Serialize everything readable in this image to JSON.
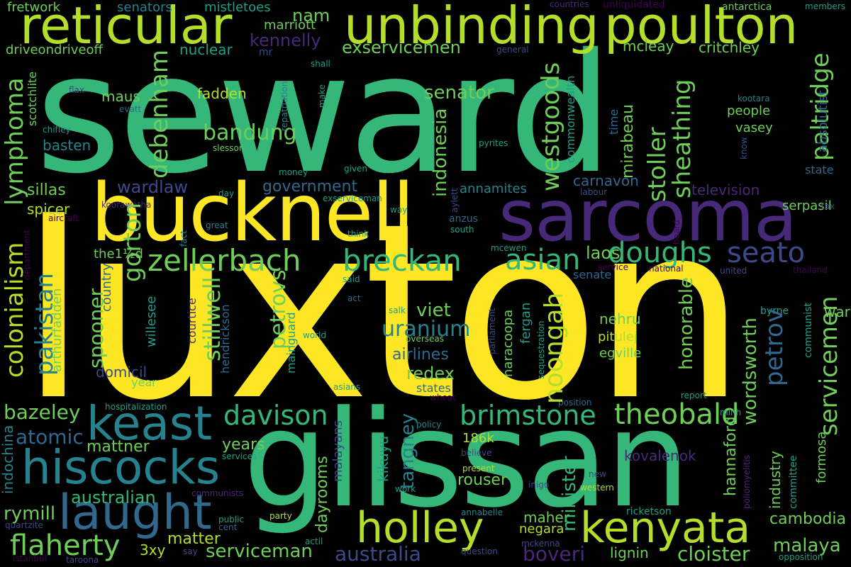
{
  "words": {
    "seward": "seward",
    "luxton": "luxton",
    "glissan": "glissan",
    "bucknell": "bucknell",
    "sarcoma": "sarcoma",
    "reticular": "reticular",
    "unbinding": "unbinding",
    "poulton": "poulton",
    "keast": "keast",
    "hiscocks": "hiscocks",
    "laught": "laught",
    "holley": "holley",
    "kenyata": "kenyata",
    "zellerbach": "zellerbach",
    "breckan": "breckan",
    "doughs": "doughs",
    "seato": "seato",
    "theobald": "theobald",
    "brimstone": "brimstone",
    "davison": "davison",
    "flaherty": "flaherty",
    "colonialism": "colonialism",
    "lymphoma": "lymphoma",
    "pakistan": "pakistan",
    "debenham": "debenham",
    "bandung": "bandung",
    "westgoods": "westgoods",
    "paltridge": "paltridge",
    "sheathing": "sheathing",
    "stoller": "stoller",
    "servicemen": "servicemen",
    "petrov": "petrov",
    "noongah": "noongah",
    "indonesia": "indonesia",
    "asian": "asian",
    "uranium": "uranium",
    "gorton": "gorton",
    "stillwell": "stillwell",
    "petrovs": "petrovs",
    "spooner": "spooner",
    "wordsworth": "wordsworth",
    "honorable": "honorable",
    "minister": "minister",
    "hannaford": "hannaford",
    "industry": "industry",
    "australian": "australian",
    "rymill": "rymill",
    "matter": "matter",
    "serviceman": "serviceman",
    "australia": "australia",
    "boveri": "boveri",
    "cloister": "cloister",
    "malaya": "malaya",
    "cambodia": "cambodia",
    "bazeley": "bazeley",
    "atomic": "atomic",
    "mattner": "mattner",
    "years": "years",
    "tangney": "tangney",
    "rouser": "rouser",
    "maher": "maher",
    "negara": "negara",
    "lignin": "lignin",
    "kovalenok": "kovalenok",
    "186k": "186k",
    "3xy": "3xy",
    "fretwork": "fretwork",
    "senators": "senators",
    "mistletoes": "mistletoes",
    "marriott": "marriott",
    "nam": "nam",
    "countries": "countries",
    "unliquidated": "unliquidated",
    "antarctica": "antarctica",
    "members": "members",
    "kennelly": "kennelly",
    "exservicemen": "exservicemen",
    "mcleay": "mcleay",
    "critchley": "critchley",
    "nuclear": "nuclear",
    "driveondriveoff": "driveondriveoff",
    "mr": "mr",
    "general": "general",
    "shall": "shall",
    "scotchlite": "scotchlite",
    "flax": "flax",
    "maus": "maus",
    "evatt": "evatt",
    "fadden": "fadden",
    "repatriation": "repatriation",
    "make": "make",
    "commonwealth": "commonwealth",
    "mirabeau": "mirabeau",
    "time": "time",
    "kootara": "kootara",
    "people": "people",
    "absolutist": "absolutist",
    "senator": "senator",
    "chifley": "chifley",
    "slessor": "slessor",
    "basten": "basten",
    "pyrites": "pyrites",
    "vasey": "vasey",
    "know": "know",
    "money": "money",
    "given": "given",
    "state": "state",
    "wardlaw": "wardlaw",
    "government": "government",
    "annamites": "annamites",
    "carnavon": "carnavon",
    "television": "television",
    "sillas": "sillas",
    "day": "day",
    "koorawatha": "koorawatha",
    "exserviceman": "exserviceman",
    "labour": "labour",
    "serpasil": "serpasil",
    "spicer": "spicer",
    "aircraft": "aircraft",
    "fact": "fact",
    "aylett": "aylett",
    "way": "way",
    "tax": "tax",
    "great": "great",
    "think": "think",
    "anzus": "anzus",
    "south": "south",
    "board": "board",
    "department": "department",
    "the1d": "the1½d",
    "country": "country",
    "mcewen": "mcewen",
    "service": "service",
    "national": "national",
    "united": "united",
    "thailand": "thailand",
    "laos": "laos",
    "senate": "senate",
    "said": "said",
    "domicil": "domicil",
    "act": "act",
    "arthurfadden": "arthurfadden",
    "willesee": "willesee",
    "courtice": "courtice",
    "hendrickson": "hendrickson",
    "mainguard": "mainguard",
    "salk": "salk",
    "viet": "viet",
    "world": "world",
    "parliament": "parliament",
    "naracoopa": "naracoopa",
    "fergan": "fergan",
    "sequestration": "sequestration",
    "nehru": "nehru",
    "byrne": "byrne",
    "war": "war",
    "pitulej": "pitulej",
    "communist": "communist",
    "egville": "egville",
    "airlines": "airlines",
    "overseas": "overseas",
    "redex": "redex",
    "year": "year",
    "states": "states",
    "wheat": "wheat",
    "hospitalization": "hospitalization",
    "report": "report",
    "minh": "minh",
    "position": "position",
    "policy": "policy",
    "kikuyu": "kikuyu",
    "believe": "believe",
    "malayans": "malayans",
    "formosa": "formosa",
    "services": "services",
    "indochina": "indochina",
    "poliomyelitis": "poliomyelitis",
    "committee": "committee",
    "new": "new",
    "present": "present",
    "inigo": "inigo",
    "communists": "communists",
    "work": "work",
    "western": "western",
    "dayrooms": "dayrooms",
    "quartzite": "quartzite",
    "public": "public",
    "cent": "cent",
    "party": "party",
    "annabelle": "annabelle",
    "ricketson": "ricketson",
    "mckenna": "mckenna",
    "actil": "actil",
    "say": "say",
    "question": "question",
    "opposition": "opposition",
    "istanbul": "istanbul",
    "taroona": "taroona",
    "asians": "asians"
  }
}
